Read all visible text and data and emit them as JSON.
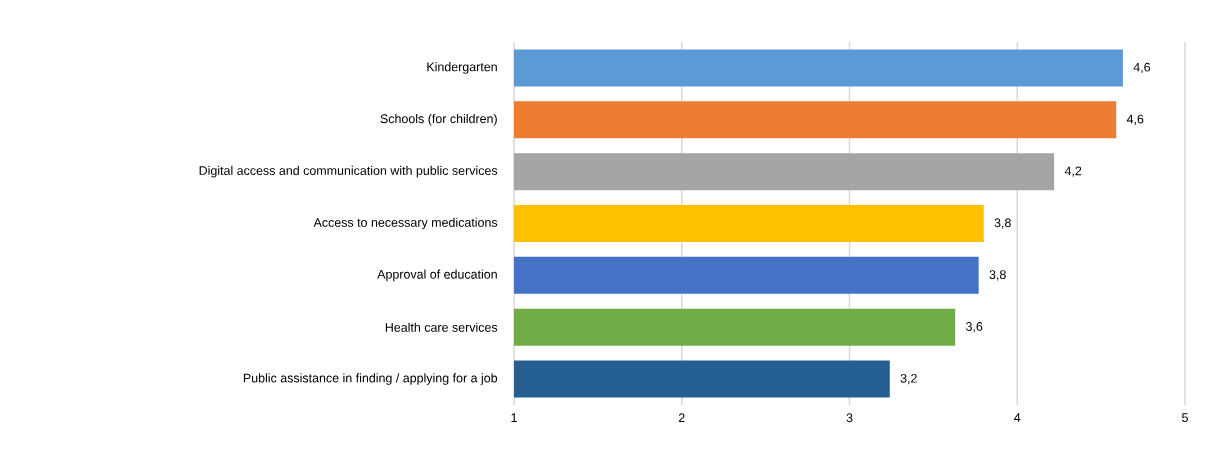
{
  "chart_data": {
    "type": "bar",
    "orientation": "horizontal",
    "categories": [
      "Kindergarten",
      "Schools (for children)",
      "Digital access and communication with public services",
      "Access to necessary medications",
      "Approval of education",
      "Health care services",
      "Public assistance in finding / applying for a job"
    ],
    "values": [
      4.63,
      4.59,
      4.22,
      3.8,
      3.77,
      3.63,
      3.24
    ],
    "value_labels": [
      "4,6",
      "4,6",
      "4,2",
      "3,8",
      "3,8",
      "3,6",
      "3,2"
    ],
    "colors": [
      "#5b9bd5",
      "#ed7d31",
      "#a5a5a5",
      "#ffc000",
      "#4472c4",
      "#70ad47",
      "#255e91"
    ],
    "xlim": [
      1,
      5
    ],
    "xticks": [
      1,
      2,
      3,
      4,
      5
    ],
    "grid": "x"
  }
}
